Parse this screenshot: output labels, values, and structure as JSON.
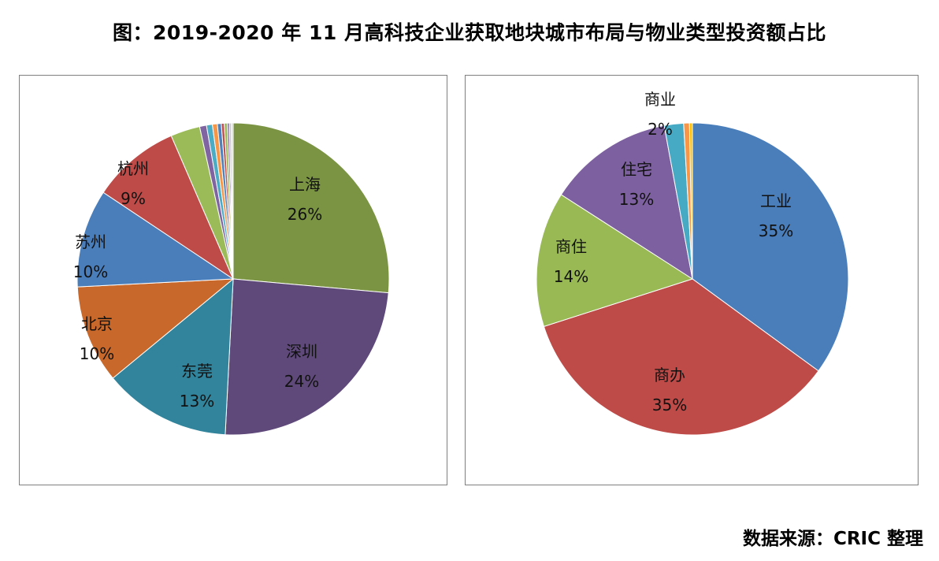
{
  "title": "图：2019-2020 年 11 月高科技企业获取地块城市布局与物业类型投资额占比",
  "source": "数据来源：CRIC 整理",
  "chart_data": [
    {
      "type": "pie",
      "start_angle_deg": 0,
      "direction": "clockwise",
      "slices": [
        {
          "name": "上海",
          "value": 26,
          "label": "26%",
          "color": "#7a9443"
        },
        {
          "name": "深圳",
          "value": 24,
          "label": "24%",
          "color": "#5f497a"
        },
        {
          "name": "东莞",
          "value": 13,
          "label": "13%",
          "color": "#31849b"
        },
        {
          "name": "北京",
          "value": 10,
          "label": "10%",
          "color": "#c8682a"
        },
        {
          "name": "苏州",
          "value": 10,
          "label": "10%",
          "color": "#4a7ebb"
        },
        {
          "name": "杭州",
          "value": 9,
          "label": "9%",
          "color": "#be4b48"
        },
        {
          "name": "",
          "value": 3.0,
          "label": "",
          "color": "#9bbb59"
        },
        {
          "name": "",
          "value": 0.7,
          "label": "",
          "color": "#8064a2"
        },
        {
          "name": "",
          "value": 0.6,
          "label": "",
          "color": "#4bacc6"
        },
        {
          "name": "",
          "value": 0.5,
          "label": "",
          "color": "#f79646"
        },
        {
          "name": "",
          "value": 0.4,
          "label": "",
          "color": "#4f81bd"
        },
        {
          "name": "",
          "value": 0.3,
          "label": "",
          "color": "#c0504d"
        },
        {
          "name": "",
          "value": 0.3,
          "label": "",
          "color": "#9bbb59"
        },
        {
          "name": "",
          "value": 0.2,
          "label": "",
          "color": "#8064a2"
        },
        {
          "name": "",
          "value": 0.2,
          "label": "",
          "color": "#c0c0c0"
        },
        {
          "name": "",
          "value": 0.2,
          "label": "",
          "color": "#d9d9d9"
        }
      ]
    },
    {
      "type": "pie",
      "start_angle_deg": 0,
      "direction": "clockwise",
      "slices": [
        {
          "name": "工业",
          "value": 35,
          "label": "35%",
          "color": "#4a7ebb"
        },
        {
          "name": "商办",
          "value": 35,
          "label": "35%",
          "color": "#be4b48"
        },
        {
          "name": "商住",
          "value": 14,
          "label": "14%",
          "color": "#98b954"
        },
        {
          "name": "住宅",
          "value": 13,
          "label": "13%",
          "color": "#7d60a0"
        },
        {
          "name": "商业",
          "value": 2,
          "label": "2%",
          "color": "#46aac5"
        },
        {
          "name": "",
          "value": 0.6,
          "label": "",
          "color": "#f79646"
        },
        {
          "name": "",
          "value": 0.3,
          "label": "",
          "color": "#ffc000"
        }
      ]
    }
  ]
}
